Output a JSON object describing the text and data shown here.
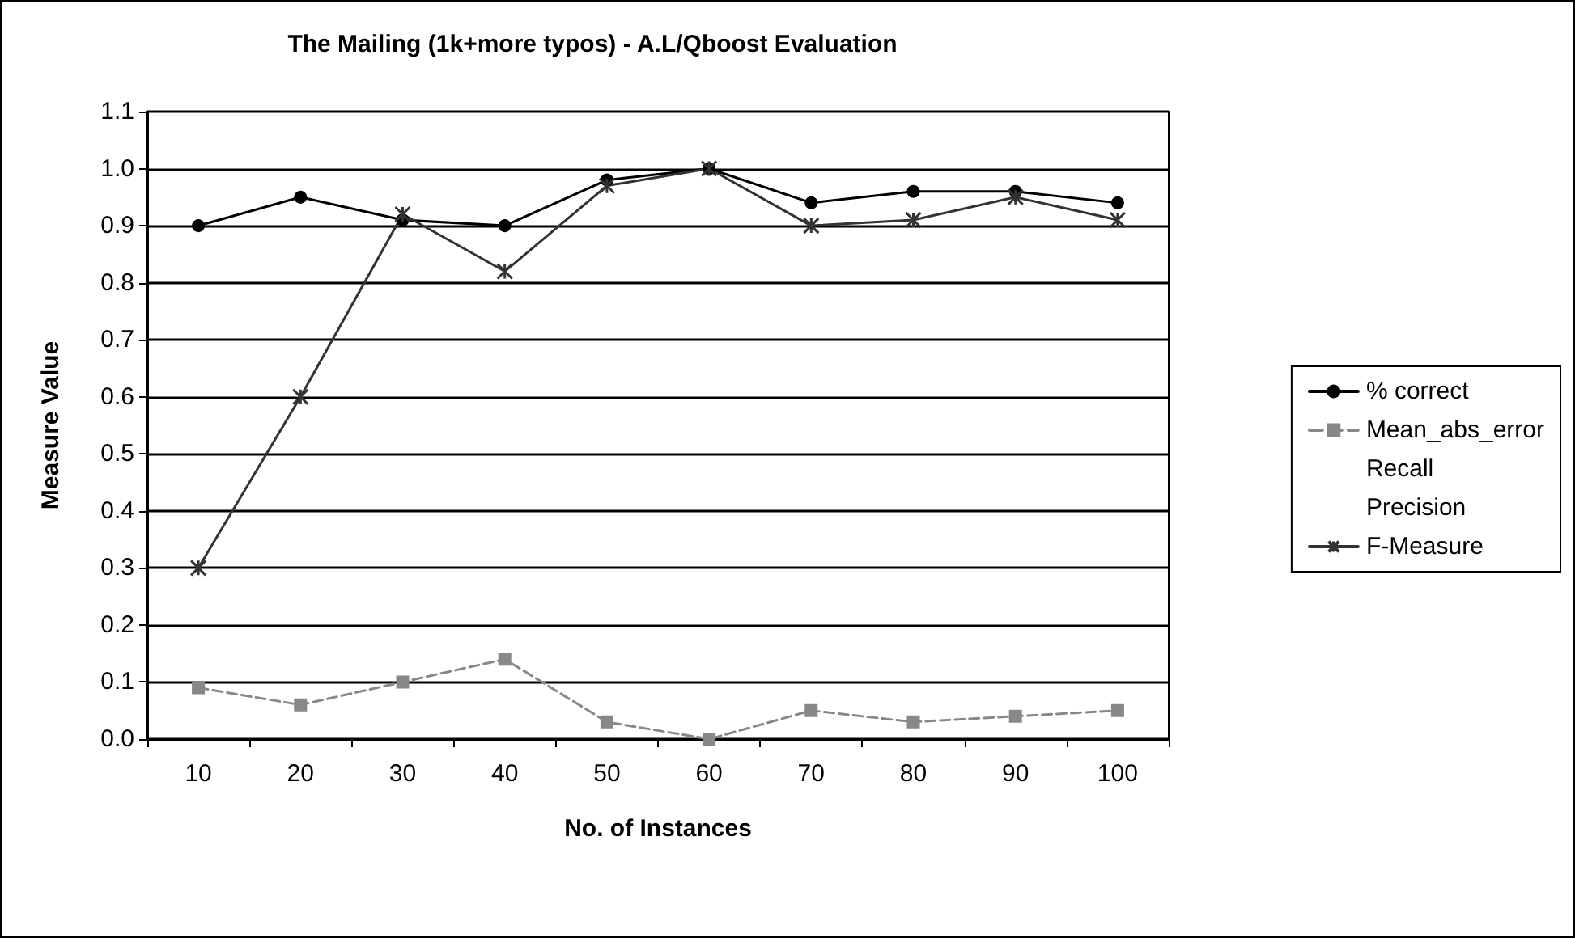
{
  "chart_data": {
    "type": "line",
    "title": "The Mailing (1k+more typos) - A.L/Qboost Evaluation",
    "xlabel": "No. of Instances",
    "ylabel": "Measure Value",
    "categories": [
      "10",
      "20",
      "30",
      "40",
      "50",
      "60",
      "70",
      "80",
      "90",
      "100"
    ],
    "ylim": [
      0,
      1.1
    ],
    "yticks": [
      {
        "value": 0,
        "label": "0.0"
      },
      {
        "value": 0.1,
        "label": "0.1"
      },
      {
        "value": 0.2,
        "label": "0.2"
      },
      {
        "value": 0.3,
        "label": "0.3"
      },
      {
        "value": 0.4,
        "label": "0.4"
      },
      {
        "value": 0.5,
        "label": "0.5"
      },
      {
        "value": 0.6,
        "label": "0.6"
      },
      {
        "value": 0.7,
        "label": "0.7"
      },
      {
        "value": 0.8,
        "label": "0.8"
      },
      {
        "value": 0.9,
        "label": "0.9"
      },
      {
        "value": 1.0,
        "label": "1.0"
      },
      {
        "value": 1.1,
        "label": "1.1"
      }
    ],
    "grid": "y",
    "legend": "right",
    "series": [
      {
        "name": "% correct",
        "color": "#000000",
        "marker": "circle",
        "line_style": "solid",
        "values": [
          0.9,
          0.95,
          0.91,
          0.9,
          0.98,
          1.0,
          0.94,
          0.96,
          0.96,
          0.94
        ]
      },
      {
        "name": "Mean_abs_error",
        "color": "#888888",
        "marker": "square",
        "line_style": "dashed",
        "values": [
          0.09,
          0.06,
          0.1,
          0.14,
          0.03,
          0.0,
          0.05,
          0.03,
          0.04,
          0.05
        ]
      },
      {
        "name": "Recall",
        "marker": "none",
        "line_style": "solid",
        "values": [
          null,
          null,
          null,
          null,
          null,
          null,
          null,
          null,
          null,
          null
        ]
      },
      {
        "name": "Precision",
        "marker": "none",
        "line_style": "solid",
        "values": [
          null,
          null,
          null,
          null,
          null,
          null,
          null,
          null,
          null,
          null
        ]
      },
      {
        "name": "F-Measure",
        "color": "#333333",
        "marker": "cross",
        "line_style": "solid",
        "values": [
          0.3,
          0.6,
          0.92,
          0.82,
          0.97,
          1.0,
          0.9,
          0.91,
          0.95,
          0.91
        ]
      }
    ]
  }
}
